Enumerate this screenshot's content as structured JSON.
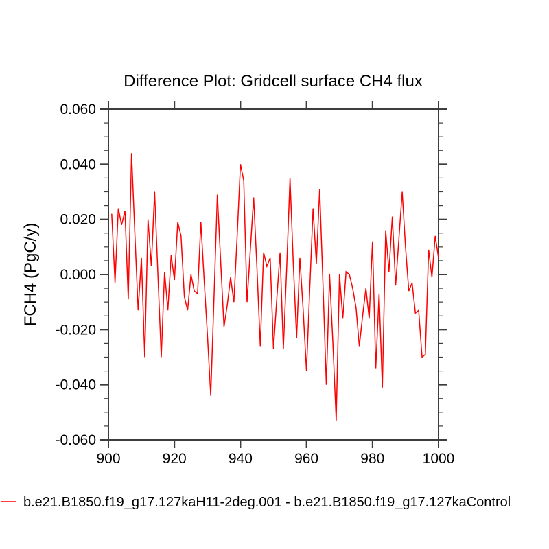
{
  "chart_data": {
    "type": "line",
    "title": "Difference Plot: Gridcell surface CH4 flux",
    "xlabel": "",
    "ylabel": "FCH4  (PgC/y)",
    "xlim": [
      900,
      1000
    ],
    "ylim": [
      -0.06,
      0.06
    ],
    "x_ticks": [
      900,
      920,
      940,
      960,
      980,
      1000
    ],
    "y_ticks": [
      0.06,
      0.04,
      0.02,
      0.0,
      -0.02,
      -0.04,
      -0.06
    ],
    "y_minor_step": 0.005,
    "x_minor_step": 0,
    "grid": false,
    "legend_position": "bottom-left",
    "line_color": "#ff0000",
    "axis_color": "#3d3d3d",
    "x": [
      901,
      902,
      903,
      904,
      905,
      906,
      907,
      908,
      909,
      910,
      911,
      912,
      913,
      914,
      915,
      916,
      917,
      918,
      919,
      920,
      921,
      922,
      923,
      924,
      925,
      926,
      927,
      928,
      929,
      930,
      931,
      932,
      933,
      934,
      935,
      936,
      937,
      938,
      939,
      940,
      941,
      942,
      943,
      944,
      945,
      946,
      947,
      948,
      949,
      950,
      951,
      952,
      953,
      954,
      955,
      956,
      957,
      958,
      959,
      960,
      961,
      962,
      963,
      964,
      965,
      966,
      967,
      968,
      969,
      970,
      971,
      972,
      973,
      974,
      975,
      976,
      977,
      978,
      979,
      980,
      981,
      982,
      983,
      984,
      985,
      986,
      987,
      988,
      989,
      990,
      991,
      992,
      993,
      994,
      995,
      996,
      997,
      998,
      999,
      1000
    ],
    "series": [
      {
        "name": "b.e21.B1850.f19_g17.127kaH11-2deg.001 - b.e21.B1850.f19_g17.127kaControl",
        "color": "#ff0000",
        "values": [
          0.022,
          -0.003,
          0.024,
          0.018,
          0.023,
          -0.009,
          0.044,
          0.015,
          -0.013,
          0.006,
          -0.03,
          0.02,
          0.003,
          0.03,
          0.0,
          -0.03,
          0.001,
          -0.013,
          0.007,
          -0.002,
          0.019,
          0.014,
          -0.008,
          -0.013,
          0.0,
          -0.006,
          -0.007,
          0.019,
          -0.002,
          -0.022,
          -0.044,
          -0.008,
          0.029,
          0.005,
          -0.019,
          -0.011,
          -0.001,
          -0.01,
          0.014,
          0.04,
          0.034,
          -0.01,
          0.009,
          0.028,
          0.002,
          -0.026,
          0.008,
          0.003,
          0.006,
          -0.027,
          -0.009,
          0.008,
          -0.027,
          0.002,
          0.035,
          0.004,
          -0.023,
          0.006,
          -0.013,
          -0.035,
          -0.005,
          0.024,
          0.004,
          0.031,
          -0.004,
          -0.04,
          0.0,
          -0.025,
          -0.053,
          0.0,
          -0.016,
          0.001,
          0.0,
          -0.005,
          -0.012,
          -0.026,
          -0.015,
          -0.005,
          -0.016,
          0.012,
          -0.034,
          -0.007,
          -0.041,
          0.016,
          0.001,
          0.021,
          -0.004,
          0.013,
          0.03,
          0.01,
          -0.006,
          -0.003,
          -0.014,
          -0.013,
          -0.03,
          -0.029,
          0.009,
          -0.001,
          0.014,
          0.006
        ]
      }
    ]
  }
}
